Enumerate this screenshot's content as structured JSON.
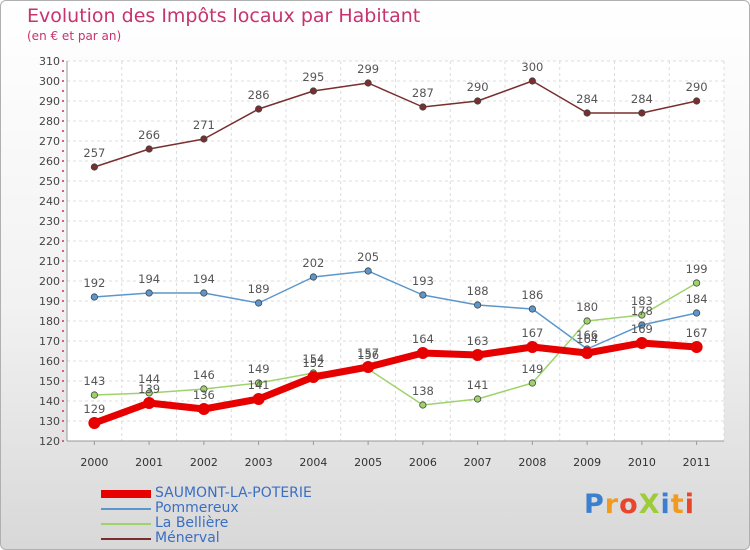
{
  "title": "Evolution des Impôts locaux par Habitant",
  "subtitle": "(en € et par an)",
  "logo": {
    "text": "ProXiti",
    "letter_colors": [
      "#3a7fd0",
      "#f29a1e",
      "#e8452c",
      "#9ecb3a",
      "#3a7fd0",
      "#f29a1e",
      "#e8452c"
    ]
  },
  "chart_data": {
    "type": "line",
    "x": [
      "2000",
      "2001",
      "2002",
      "2003",
      "2004",
      "2005",
      "2006",
      "2007",
      "2008",
      "2009",
      "2010",
      "2011"
    ],
    "yticks": [
      120,
      130,
      140,
      150,
      160,
      170,
      180,
      190,
      200,
      210,
      220,
      230,
      240,
      250,
      260,
      270,
      280,
      290,
      300,
      310
    ],
    "ylim": [
      120,
      310
    ],
    "grid": true,
    "legend_position": "bottom-left",
    "series": [
      {
        "name": "SAUMONT-LA-POTERIE",
        "color": "#e60000",
        "bold": true,
        "values": [
          129,
          139,
          136,
          141,
          152,
          157,
          164,
          163,
          167,
          164,
          169,
          167
        ],
        "labels": [
          "129",
          "139",
          "136",
          "141",
          "152",
          "157",
          "164",
          "163",
          "167",
          "164",
          "169",
          "167"
        ]
      },
      {
        "name": "Pommereux",
        "color": "#5b97cc",
        "values": [
          192,
          194,
          194,
          189,
          202,
          205,
          193,
          188,
          186,
          166,
          178,
          184
        ],
        "labels": [
          "192",
          "194",
          "194",
          "189",
          "202",
          "205",
          "193",
          "188",
          "186",
          "166",
          "178",
          "184"
        ]
      },
      {
        "name": "La Bellière",
        "color": "#9ed36a",
        "values": [
          143,
          144,
          146,
          149,
          154,
          156,
          138,
          141,
          149,
          180,
          183,
          199
        ],
        "labels": [
          "143",
          "144",
          "146",
          "149",
          "154",
          "156",
          "138",
          "141",
          "149",
          "180",
          "183",
          "199"
        ]
      },
      {
        "name": "Ménerval",
        "color": "#7a2e2e",
        "values": [
          257,
          266,
          271,
          286,
          295,
          299,
          287,
          290,
          300,
          284,
          284,
          290
        ],
        "labels": [
          "257",
          "266",
          "271",
          "286",
          "295",
          "299",
          "287",
          "290",
          "300",
          "284",
          "284",
          "290"
        ]
      }
    ]
  }
}
